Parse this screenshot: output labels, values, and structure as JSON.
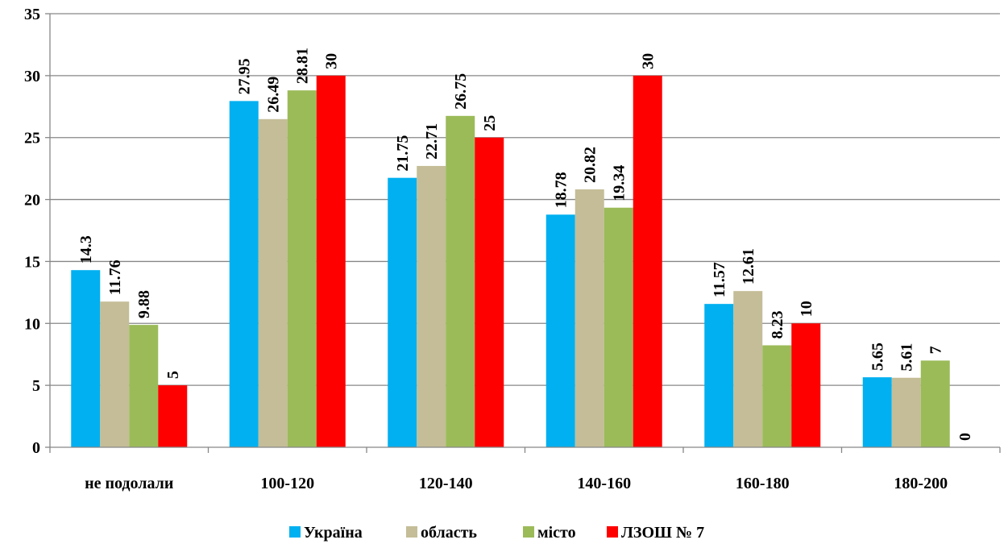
{
  "chart_data": {
    "type": "bar",
    "categories": [
      "не подолали",
      "100-120",
      "120-140",
      "140-160",
      "160-180",
      "180-200"
    ],
    "series": [
      {
        "name": "Україна",
        "color": "#00B0F0",
        "values": [
          14.3,
          27.95,
          21.75,
          18.78,
          11.57,
          5.65
        ]
      },
      {
        "name": "область",
        "color": "#C4BD97",
        "values": [
          11.76,
          26.49,
          22.71,
          20.82,
          12.61,
          5.61
        ]
      },
      {
        "name": "місто",
        "color": "#9BBB59",
        "values": [
          9.88,
          28.81,
          26.75,
          19.34,
          8.23,
          7
        ]
      },
      {
        "name": "ЛЗОШ № 7",
        "color": "#FF0000",
        "values": [
          5,
          30,
          25,
          30,
          10,
          0
        ]
      }
    ],
    "ylim": [
      0,
      35
    ],
    "yticks": [
      0,
      5,
      10,
      15,
      20,
      25,
      30,
      35
    ],
    "grid": true,
    "legend": "bottom"
  }
}
